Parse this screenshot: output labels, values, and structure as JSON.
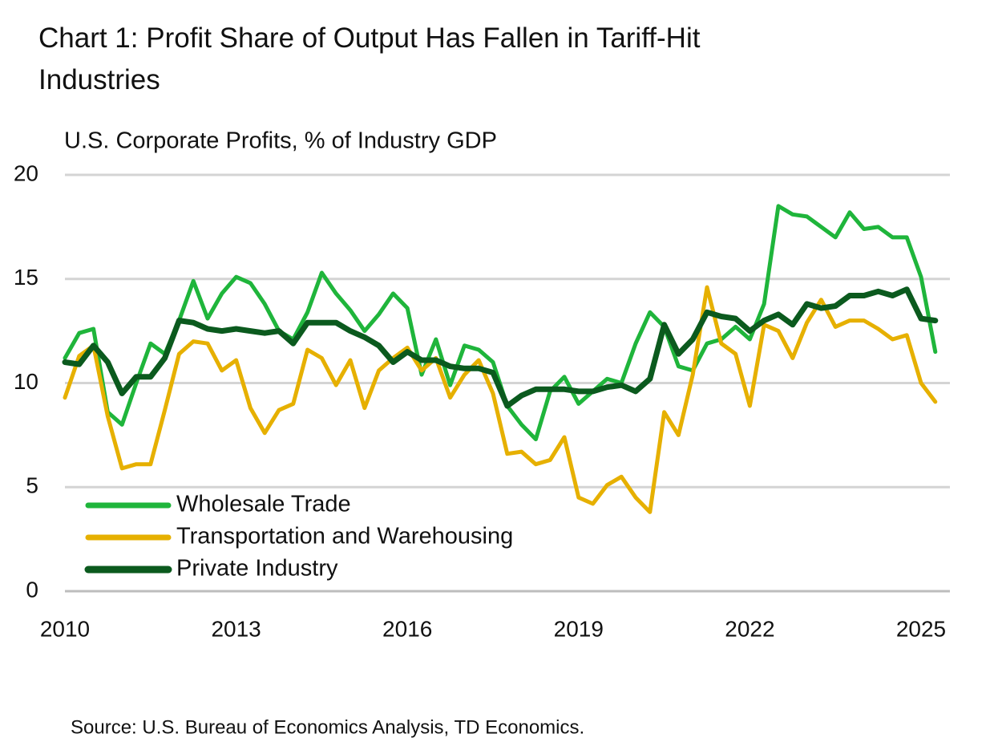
{
  "chart_data": {
    "type": "line",
    "title": "Chart 1: Profit Share of Output Has Fallen in Tariff-Hit Industries",
    "subtitle": "U.S. Corporate Profits, % of Industry GDP",
    "source": "Source: U.S. Bureau of Economics Analysis, TD Economics.",
    "categories": [
      "2010",
      null,
      null,
      null,
      null,
      null,
      null,
      null,
      null,
      null,
      null,
      null,
      "2013",
      null,
      null,
      null,
      null,
      null,
      null,
      null,
      null,
      null,
      null,
      null,
      "2016",
      null,
      null,
      null,
      null,
      null,
      null,
      null,
      null,
      null,
      null,
      null,
      "2019",
      null,
      null,
      null,
      null,
      null,
      null,
      null,
      null,
      null,
      null,
      null,
      "2022",
      null,
      null,
      null,
      null,
      null,
      null,
      null,
      null,
      null,
      null,
      null,
      "2025",
      null
    ],
    "ylim": [
      0,
      20
    ],
    "yticks": [
      0,
      5,
      10,
      15,
      20
    ],
    "grid": true,
    "legend": "lower left",
    "series": [
      {
        "name": "Wholesale Trade",
        "color": "#1fb53b",
        "width": 5,
        "values": [
          11.2,
          12.4,
          12.6,
          8.6,
          8.0,
          10.0,
          11.9,
          11.4,
          13.0,
          14.9,
          13.1,
          14.3,
          15.1,
          14.8,
          13.8,
          12.5,
          12.1,
          13.4,
          15.3,
          14.3,
          13.5,
          12.5,
          13.3,
          14.3,
          13.6,
          10.4,
          12.1,
          9.9,
          11.8,
          11.6,
          11.0,
          8.9,
          8.0,
          7.3,
          9.6,
          10.3,
          9.0,
          9.6,
          10.2,
          10.0,
          11.9,
          13.4,
          12.7,
          10.8,
          10.6,
          11.9,
          12.1,
          12.7,
          12.1,
          13.8,
          18.5,
          18.1,
          18.0,
          17.5,
          17.0,
          18.2,
          17.4,
          17.5,
          17.0,
          17.0,
          15.1,
          11.5
        ]
      },
      {
        "name": "Transportation and Warehousing",
        "color": "#e6b000",
        "width": 5,
        "values": [
          9.3,
          11.3,
          11.8,
          8.4,
          5.9,
          6.1,
          6.1,
          8.7,
          11.4,
          12.0,
          11.9,
          10.6,
          11.1,
          8.8,
          7.6,
          8.7,
          9.0,
          11.6,
          11.2,
          9.9,
          11.1,
          8.8,
          10.6,
          11.2,
          11.7,
          10.6,
          11.2,
          9.3,
          10.4,
          11.1,
          9.5,
          6.6,
          6.7,
          6.1,
          6.3,
          7.4,
          4.5,
          4.2,
          5.1,
          5.5,
          4.5,
          3.8,
          8.6,
          7.5,
          10.4,
          14.6,
          11.9,
          11.4,
          8.9,
          12.8,
          12.5,
          11.2,
          12.9,
          14.0,
          12.7,
          13.0,
          13.0,
          12.6,
          12.1,
          12.3,
          10.0,
          9.1
        ]
      },
      {
        "name": "Private Industry",
        "color": "#0b5a1e",
        "width": 7,
        "values": [
          11.0,
          10.9,
          11.8,
          11.0,
          9.5,
          10.3,
          10.3,
          11.2,
          13.0,
          12.9,
          12.6,
          12.5,
          12.6,
          12.5,
          12.4,
          12.5,
          11.9,
          12.9,
          12.9,
          12.9,
          12.5,
          12.2,
          11.8,
          11.0,
          11.5,
          11.1,
          11.1,
          10.8,
          10.7,
          10.7,
          10.5,
          8.9,
          9.4,
          9.7,
          9.7,
          9.7,
          9.6,
          9.6,
          9.8,
          9.9,
          9.6,
          10.2,
          12.8,
          11.4,
          12.1,
          13.4,
          13.2,
          13.1,
          12.5,
          13.0,
          13.3,
          12.8,
          13.8,
          13.6,
          13.7,
          14.2,
          14.2,
          14.4,
          14.2,
          14.5,
          13.1,
          13.0
        ]
      }
    ]
  }
}
